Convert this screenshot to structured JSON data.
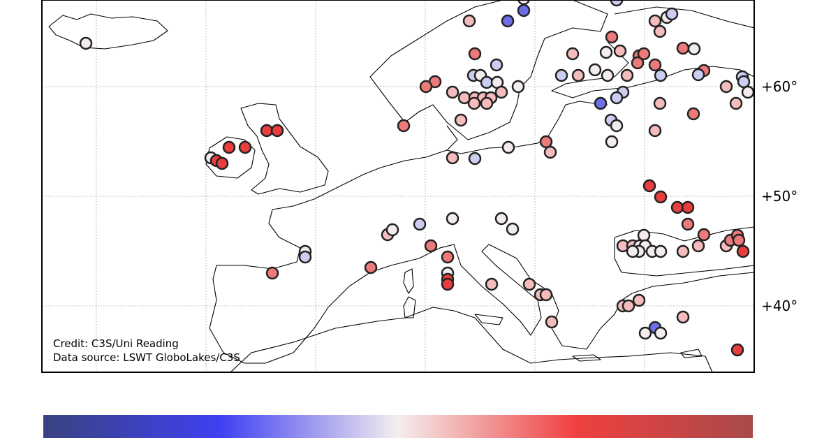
{
  "map": {
    "lat_labels": [
      "+60°",
      "+50°",
      "+40°"
    ],
    "credit": "Credit: C3S/Uni Reading",
    "source": "Data source: LSWT GloboLakes/C3S"
  }
}
